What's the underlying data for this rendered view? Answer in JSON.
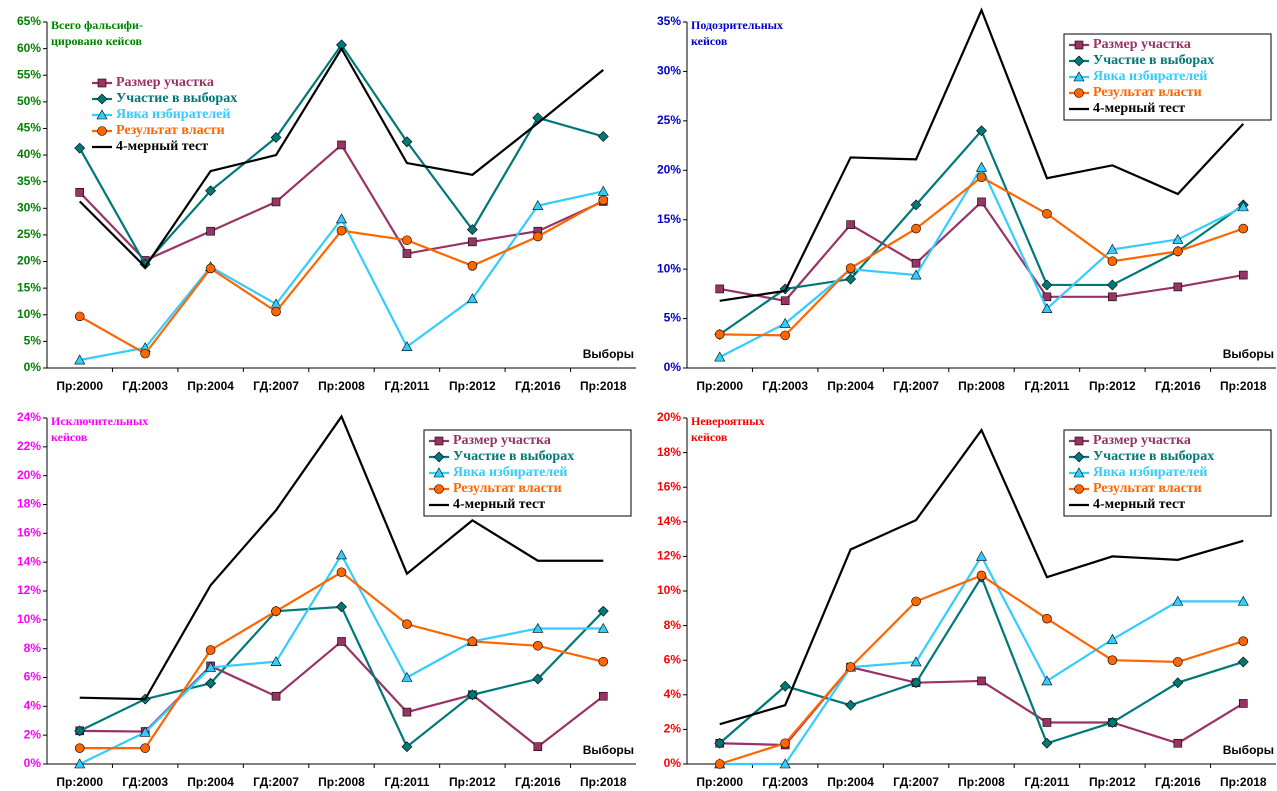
{
  "chart_data": [
    {
      "type": "line",
      "title": [
        "Всего фальсифи-",
        "цировано кейсов"
      ],
      "title_color": "#008000",
      "x_label": "Выборы",
      "legend": "upper left",
      "categories": [
        "Пр:2000",
        "ГД:2003",
        "Пр:2004",
        "ГД:2007",
        "Пр:2008",
        "ГД:2011",
        "Пр:2012",
        "ГД:2016",
        "Пр:2018"
      ],
      "ylim": [
        0,
        65
      ],
      "yticks": [
        {
          "value": 0,
          "label": "0%"
        },
        {
          "value": 5,
          "label": "5%"
        },
        {
          "value": 10,
          "label": "10%"
        },
        {
          "value": 15,
          "label": "15%"
        },
        {
          "value": 20,
          "label": "20%"
        },
        {
          "value": 25,
          "label": "25%"
        },
        {
          "value": 30,
          "label": "30%"
        },
        {
          "value": 35,
          "label": "35%"
        },
        {
          "value": 40,
          "label": "40%"
        },
        {
          "value": 45,
          "label": "45%"
        },
        {
          "value": 50,
          "label": "50%"
        },
        {
          "value": 55,
          "label": "55%"
        },
        {
          "value": 60,
          "label": "60%"
        },
        {
          "value": 65,
          "label": "65%"
        }
      ],
      "series": [
        {
          "name": "Размер участка",
          "color": "#993366",
          "marker": "square",
          "values": [
            33,
            20.2,
            25.7,
            31.2,
            41.9,
            21.5,
            23.7,
            25.7,
            31.3
          ]
        },
        {
          "name": "Участие в выборах",
          "color": "#007878",
          "marker": "diamond",
          "values": [
            41.3,
            19.5,
            33.3,
            43.3,
            60.7,
            42.5,
            26,
            47,
            43.5
          ]
        },
        {
          "name": "Явка избирателей",
          "color": "#33ccff",
          "marker": "triangle",
          "values": [
            1.5,
            3.8,
            19,
            12,
            28,
            4,
            13,
            30.5,
            33.2
          ]
        },
        {
          "name": "Результат власти",
          "color": "#ff6600",
          "marker": "circle",
          "values": [
            9.7,
            2.7,
            18.7,
            10.6,
            25.8,
            24,
            19.2,
            24.7,
            31.5
          ]
        },
        {
          "name": "4-мерный тест",
          "color": "#000000",
          "marker": "none",
          "values": [
            31.3,
            19,
            37,
            40,
            60,
            38.5,
            36.3,
            46,
            56
          ]
        }
      ]
    },
    {
      "type": "line",
      "title": [
        "Подозрительных",
        "кейсов"
      ],
      "title_color": "#0000cc",
      "x_label": "Выборы",
      "legend": "upper right",
      "categories": [
        "Пр:2000",
        "ГД:2003",
        "Пр:2004",
        "ГД:2007",
        "Пр:2008",
        "ГД:2011",
        "Пр:2012",
        "ГД:2016",
        "Пр:2018"
      ],
      "ylim": [
        0,
        35
      ],
      "yticks": [
        {
          "value": 0,
          "label": "0%"
        },
        {
          "value": 5,
          "label": "5%"
        },
        {
          "value": 10,
          "label": "10%"
        },
        {
          "value": 15,
          "label": "15%"
        },
        {
          "value": 20,
          "label": "20%"
        },
        {
          "value": 25,
          "label": "25%"
        },
        {
          "value": 30,
          "label": "30%"
        },
        {
          "value": 35,
          "label": "35%"
        }
      ],
      "series": [
        {
          "name": "Размер участка",
          "color": "#993366",
          "marker": "square",
          "values": [
            8,
            6.8,
            14.5,
            10.6,
            16.8,
            7.2,
            7.2,
            8.2,
            9.4
          ]
        },
        {
          "name": "Участие в выборах",
          "color": "#007878",
          "marker": "diamond",
          "values": [
            3.4,
            8,
            9,
            16.5,
            24,
            8.4,
            8.4,
            11.8,
            16.5
          ]
        },
        {
          "name": "Явка избирателей",
          "color": "#33ccff",
          "marker": "triangle",
          "values": [
            1.1,
            4.5,
            10,
            9.4,
            20.3,
            6,
            12,
            13,
            16.3
          ]
        },
        {
          "name": "Результат власти",
          "color": "#ff6600",
          "marker": "circle",
          "values": [
            3.4,
            3.3,
            10.1,
            14.1,
            19.3,
            15.6,
            10.8,
            11.8,
            14.1
          ]
        },
        {
          "name": "4-мерный тест",
          "color": "#000000",
          "marker": "none",
          "values": [
            6.8,
            7.8,
            21.3,
            21.1,
            36.2,
            19.2,
            20.5,
            17.6,
            24.7
          ]
        }
      ]
    },
    {
      "type": "line",
      "title": [
        "Исключительных",
        "кейсов"
      ],
      "title_color": "#ff00ff",
      "x_label": "Выборы",
      "legend": "upper right",
      "categories": [
        "Пр:2000",
        "ГД:2003",
        "Пр:2004",
        "ГД:2007",
        "Пр:2008",
        "ГД:2011",
        "Пр:2012",
        "ГД:2016",
        "Пр:2018"
      ],
      "ylim": [
        0,
        24
      ],
      "yticks": [
        {
          "value": 0,
          "label": "0%"
        },
        {
          "value": 2,
          "label": "2%"
        },
        {
          "value": 4,
          "label": "4%"
        },
        {
          "value": 6,
          "label": "6%"
        },
        {
          "value": 8,
          "label": "8%"
        },
        {
          "value": 10,
          "label": "10%"
        },
        {
          "value": 12,
          "label": "12%"
        },
        {
          "value": 14,
          "label": "14%"
        },
        {
          "value": 16,
          "label": "16%"
        },
        {
          "value": 18,
          "label": "18%"
        },
        {
          "value": 20,
          "label": "20%"
        },
        {
          "value": 22,
          "label": "22%"
        },
        {
          "value": 24,
          "label": "24%"
        }
      ],
      "series": [
        {
          "name": "Размер участка",
          "color": "#993366",
          "marker": "square",
          "values": [
            2.3,
            2.25,
            6.8,
            4.7,
            8.5,
            3.6,
            4.8,
            1.2,
            4.7
          ]
        },
        {
          "name": "Участие в выборах",
          "color": "#007878",
          "marker": "diamond",
          "values": [
            2.3,
            4.5,
            5.6,
            10.6,
            10.9,
            1.2,
            4.8,
            5.9,
            10.6
          ]
        },
        {
          "name": "Явка избирателей",
          "color": "#33ccff",
          "marker": "triangle",
          "values": [
            0,
            2.2,
            6.7,
            7.1,
            14.5,
            6,
            8.5,
            9.4,
            9.4
          ]
        },
        {
          "name": "Результат власти",
          "color": "#ff6600",
          "marker": "circle",
          "values": [
            1.1,
            1.1,
            7.9,
            10.6,
            13.3,
            9.7,
            8.5,
            8.2,
            7.1
          ]
        },
        {
          "name": "4-мерный тест",
          "color": "#000000",
          "marker": "none",
          "values": [
            4.6,
            4.5,
            12.4,
            17.6,
            24.1,
            13.2,
            16.9,
            14.1,
            14.1
          ]
        }
      ]
    },
    {
      "type": "line",
      "title": [
        "Невероятных",
        "кейсов"
      ],
      "title_color": "#ff0000",
      "x_label": "Выборы",
      "legend": "upper right",
      "categories": [
        "Пр:2000",
        "ГД:2003",
        "Пр:2004",
        "ГД:2007",
        "Пр:2008",
        "ГД:2011",
        "Пр:2012",
        "ГД:2016",
        "Пр:2018"
      ],
      "ylim": [
        0,
        20
      ],
      "yticks": [
        {
          "value": 0,
          "label": "0%"
        },
        {
          "value": 2,
          "label": "2%"
        },
        {
          "value": 4,
          "label": "4%"
        },
        {
          "value": 6,
          "label": "6%"
        },
        {
          "value": 8,
          "label": "8%"
        },
        {
          "value": 10,
          "label": "10%"
        },
        {
          "value": 12,
          "label": "12%"
        },
        {
          "value": 14,
          "label": "14%"
        },
        {
          "value": 16,
          "label": "16%"
        },
        {
          "value": 18,
          "label": "18%"
        },
        {
          "value": 20,
          "label": "20%"
        }
      ],
      "series": [
        {
          "name": "Размер участка",
          "color": "#993366",
          "marker": "square",
          "values": [
            1.2,
            1.1,
            5.6,
            4.7,
            4.8,
            2.4,
            2.4,
            1.2,
            3.5
          ]
        },
        {
          "name": "Участие в выборах",
          "color": "#007878",
          "marker": "diamond",
          "values": [
            1.2,
            4.5,
            3.4,
            4.7,
            10.8,
            1.2,
            2.4,
            4.7,
            5.9
          ]
        },
        {
          "name": "Явка избирателей",
          "color": "#33ccff",
          "marker": "triangle",
          "values": [
            0,
            0,
            5.6,
            5.9,
            12,
            4.8,
            7.2,
            9.4,
            9.4
          ]
        },
        {
          "name": "Результат власти",
          "color": "#ff6600",
          "marker": "circle",
          "values": [
            0,
            1.2,
            5.6,
            9.4,
            10.9,
            8.4,
            6,
            5.9,
            7.1
          ]
        },
        {
          "name": "4-мерный тест",
          "color": "#000000",
          "marker": "none",
          "values": [
            2.3,
            3.4,
            12.4,
            14.1,
            19.3,
            10.8,
            12,
            11.8,
            12.9
          ]
        }
      ]
    }
  ]
}
